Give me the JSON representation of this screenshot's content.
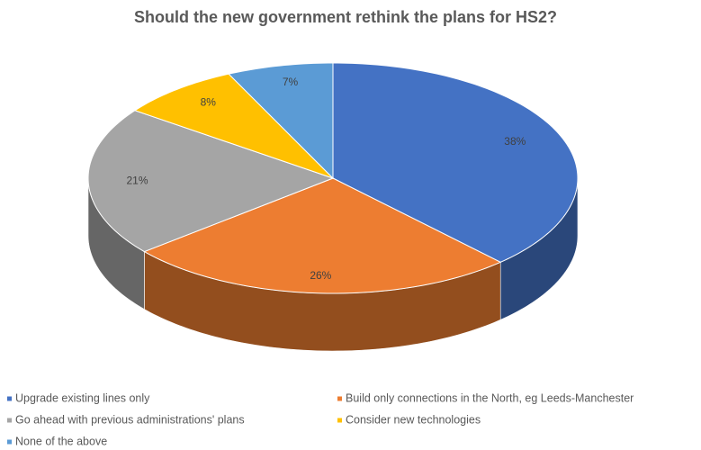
{
  "chart_data": {
    "type": "pie",
    "title": "Should the new government rethink the plans for HS2?",
    "categories": [
      "Upgrade existing lines only",
      "Build only connections in the North, eg Leeds-Manchester",
      "Go ahead with previous administrations' plans",
      "Consider new technologies",
      "None of the above"
    ],
    "values": [
      38,
      26,
      21,
      8,
      7
    ],
    "value_labels": [
      "38%",
      "26%",
      "21%",
      "8%",
      "7%"
    ],
    "colors": [
      "#4472c4",
      "#ed7d31",
      "#a5a5a5",
      "#ffc000",
      "#5b9bd5"
    ],
    "legend": "bottom"
  }
}
